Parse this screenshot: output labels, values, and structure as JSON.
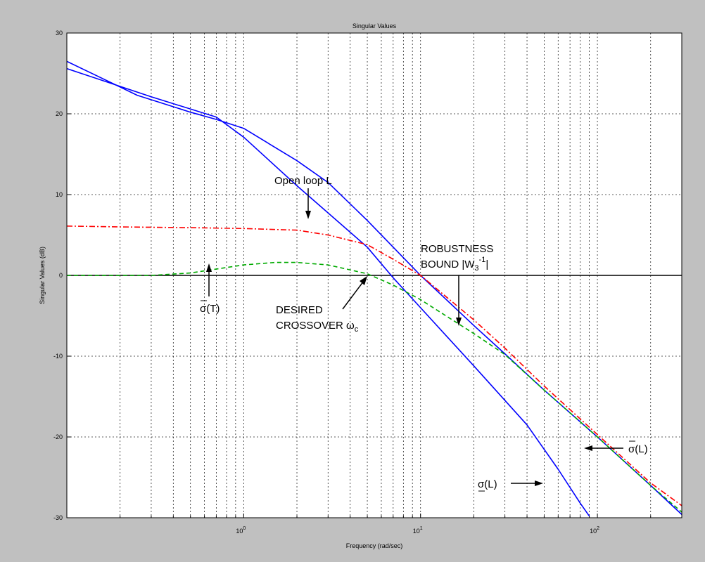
{
  "chart_data": {
    "type": "line",
    "title": "Singular Values",
    "xlabel": "Frequency (rad/sec)",
    "ylabel": "Singular Values (dB)",
    "xscale": "log",
    "xlim": [
      0.1,
      300
    ],
    "ylim": [
      -30,
      30
    ],
    "grid": true,
    "x_ticks": [
      1,
      10,
      100
    ],
    "x_tick_labels": [
      "10^0",
      "10^1",
      "10^2"
    ],
    "y_ticks": [
      -30,
      -20,
      -10,
      0,
      10,
      20,
      30
    ],
    "y_tick_labels": [
      "-30",
      "-20",
      "-10",
      "0",
      "10",
      "20",
      "30"
    ],
    "zero_line": 0,
    "series": [
      {
        "color": "#0000ff",
        "style": "solid",
        "x": [
          0.1,
          0.25,
          0.5,
          0.7,
          1,
          2,
          3,
          5,
          7,
          10,
          20,
          30,
          50,
          100,
          200,
          300
        ],
        "y": [
          26.5,
          22.3,
          20.2,
          19.3,
          18.2,
          14.2,
          11.5,
          6.8,
          3.5,
          0.0,
          -6.2,
          -9.7,
          -14.2,
          -20.0,
          -26.0,
          -29.6
        ]
      },
      {
        "color": "#0000ff",
        "style": "solid",
        "x": [
          0.1,
          0.3,
          0.7,
          1,
          2,
          5,
          7,
          10,
          20,
          40,
          60,
          80,
          90
        ],
        "y": [
          25.6,
          22.1,
          19.6,
          17.1,
          11.1,
          3.5,
          -0.3,
          -4.0,
          -11.2,
          -18.5,
          -24.0,
          -28.2,
          -29.8
        ]
      },
      {
        "color": "#ff0000",
        "style": "dash-dot",
        "x": [
          0.1,
          0.2,
          0.5,
          1,
          2,
          3,
          5,
          7,
          10,
          20,
          30,
          50,
          100,
          200,
          300
        ],
        "y": [
          6.1,
          6.0,
          5.9,
          5.8,
          5.6,
          5.0,
          3.8,
          2.0,
          0.0,
          -5.5,
          -9.0,
          -13.7,
          -19.7,
          -25.7,
          -28.5
        ]
      },
      {
        "color": "#00aa00",
        "style": "dashed",
        "x": [
          0.1,
          0.3,
          0.5,
          1,
          1.5,
          2,
          3,
          5,
          7,
          10,
          20,
          30,
          50,
          100,
          200,
          300
        ],
        "y": [
          0.0,
          0.0,
          0.3,
          1.3,
          1.6,
          1.6,
          1.3,
          0.2,
          -1.2,
          -3.0,
          -7.2,
          -9.8,
          -14.2,
          -20.0,
          -26.0,
          -29.3
        ]
      }
    ],
    "annotations": {
      "open_loop": "Open loop L",
      "robust_1": "ROBUSTNESS",
      "robust_2": "BOUND |W",
      "robust_sub": "3",
      "robust_sup": "-1",
      "robust_end": "|",
      "desired_1": "DESIRED",
      "desired_2": "CROSSOVER ω",
      "desired_sub": "c",
      "sigma_bar": "σ",
      "sigma_T": "(T)",
      "sigma_L": "(L)"
    },
    "colors": {
      "background": "#c0c0c0",
      "axes_background": "#ffffff",
      "open_loop": "#0000ff",
      "robustness_bound": "#ff0000",
      "closed_loop": "#00aa00"
    }
  }
}
